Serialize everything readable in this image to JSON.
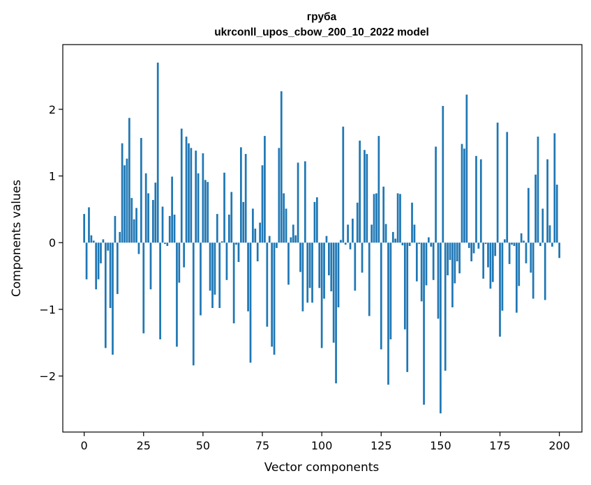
{
  "chart_data": {
    "type": "bar",
    "title": "груба",
    "subtitle": "ukrconll_upos_cbow_200_10_2022 model",
    "xlabel": "Vector components",
    "ylabel": "Components values",
    "xlim": [
      -9,
      209.5
    ],
    "ylim": [
      -2.84,
      2.97
    ],
    "xticks": [
      0,
      25,
      50,
      75,
      100,
      125,
      150,
      175,
      200
    ],
    "yticks": [
      -2,
      -1,
      0,
      1,
      2
    ],
    "ytick_labels": [
      "−2",
      "−1",
      "0",
      "1",
      "2"
    ],
    "grid": false,
    "legend": "none",
    "bar_color": "#1f77b4",
    "values": [
      0.43,
      -0.55,
      0.53,
      0.11,
      0.03,
      -0.7,
      -0.55,
      -0.31,
      0.05,
      -1.58,
      -0.12,
      -0.98,
      -1.68,
      0.4,
      -0.77,
      0.16,
      1.49,
      1.16,
      1.26,
      1.87,
      0.67,
      0.35,
      0.52,
      -0.17,
      1.57,
      -1.36,
      1.04,
      0.74,
      -0.7,
      0.64,
      0.9,
      2.7,
      -1.45,
      0.54,
      -0.02,
      -0.05,
      0.4,
      0.99,
      0.42,
      -1.56,
      -0.6,
      1.71,
      -0.37,
      1.59,
      1.49,
      1.42,
      -1.84,
      1.38,
      1.04,
      -1.09,
      1.34,
      0.94,
      0.91,
      -0.72,
      -0.98,
      -0.78,
      0.43,
      -0.98,
      0.02,
      1.05,
      -0.56,
      0.42,
      0.76,
      -1.21,
      -0.03,
      -0.29,
      1.43,
      0.61,
      1.33,
      -1.03,
      -1.8,
      0.51,
      0.21,
      -0.28,
      0.3,
      1.16,
      1.6,
      -1.26,
      0.1,
      -1.56,
      -1.68,
      -0.08,
      1.42,
      2.27,
      0.74,
      0.51,
      -0.63,
      0.08,
      0.27,
      0.11,
      1.2,
      -0.44,
      -1.03,
      1.22,
      -0.9,
      -0.68,
      -0.9,
      0.61,
      0.68,
      -0.68,
      -1.58,
      -0.84,
      0.1,
      -0.49,
      -0.73,
      -1.5,
      -2.11,
      -0.97,
      0.04,
      1.74,
      -0.03,
      0.27,
      -0.1,
      0.36,
      -0.72,
      0.6,
      1.53,
      -0.45,
      1.39,
      1.33,
      -1.1,
      0.27,
      0.73,
      0.74,
      1.6,
      -1.6,
      0.84,
      0.28,
      -2.13,
      -1.45,
      0.16,
      0.06,
      0.74,
      0.73,
      -0.04,
      -1.3,
      -1.94,
      -0.05,
      0.6,
      0.27,
      -0.58,
      -0.02,
      -0.88,
      -2.43,
      -0.64,
      0.08,
      -0.06,
      -0.56,
      1.44,
      -1.14,
      -2.56,
      2.05,
      -1.92,
      -0.49,
      -0.26,
      -0.97,
      -0.61,
      -0.28,
      -0.46,
      1.48,
      1.41,
      2.22,
      -0.08,
      -0.28,
      -0.16,
      1.3,
      -0.09,
      1.25,
      -0.54,
      -0.02,
      -0.37,
      -0.69,
      -0.59,
      -0.2,
      1.8,
      -1.41,
      -1.02,
      0.05,
      1.66,
      -0.32,
      -0.03,
      -0.05,
      -1.05,
      -0.65,
      0.14,
      0.03,
      -0.31,
      0.82,
      -0.45,
      -0.84,
      1.02,
      1.59,
      -0.05,
      0.51,
      -0.86,
      1.25,
      0.26,
      -0.06,
      1.64,
      0.87,
      -0.23
    ]
  }
}
